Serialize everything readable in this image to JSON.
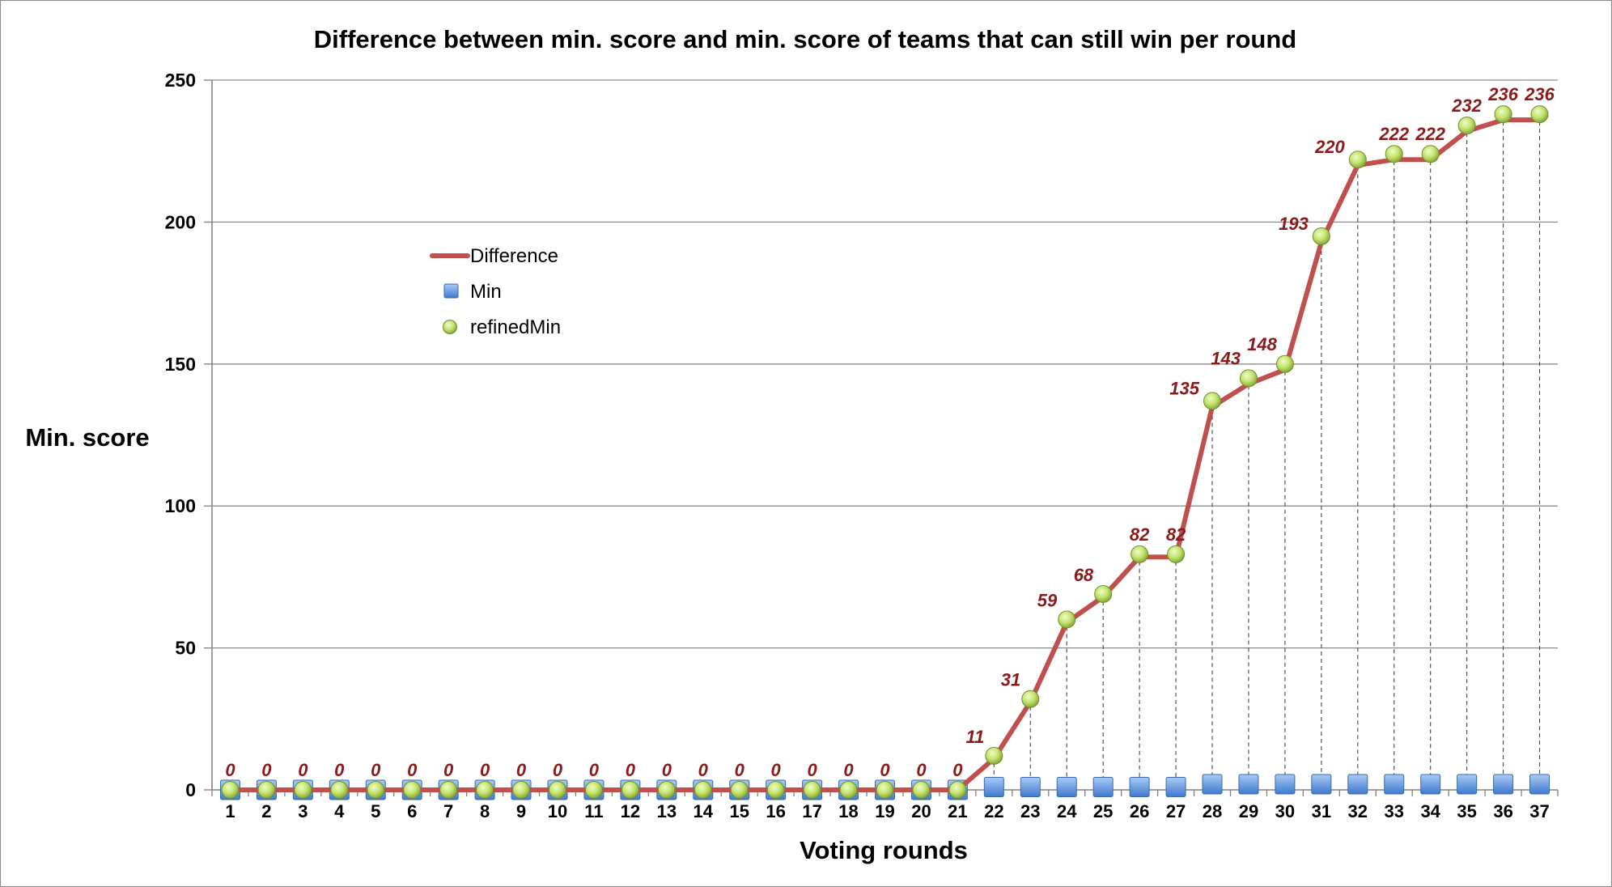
{
  "chart_data": {
    "type": "line",
    "title": "Difference between min. score and min. score of teams that can still win per round",
    "xlabel": "Voting rounds",
    "ylabel": "Min. score",
    "ylim": [
      0,
      250
    ],
    "yticks": [
      "0",
      "50",
      "100",
      "150",
      "200",
      "250"
    ],
    "categories": [
      "1",
      "2",
      "3",
      "4",
      "5",
      "6",
      "7",
      "8",
      "9",
      "10",
      "11",
      "12",
      "13",
      "14",
      "15",
      "16",
      "17",
      "18",
      "19",
      "20",
      "21",
      "22",
      "23",
      "24",
      "25",
      "26",
      "27",
      "28",
      "29",
      "30",
      "31",
      "32",
      "33",
      "34",
      "35",
      "36",
      "37"
    ],
    "legend_position": "upper-left",
    "series": [
      {
        "name": "Difference",
        "style": "line",
        "color": "#c0504d",
        "values": [
          0,
          0,
          0,
          0,
          0,
          0,
          0,
          0,
          0,
          0,
          0,
          0,
          0,
          0,
          0,
          0,
          0,
          0,
          0,
          0,
          0,
          11,
          31,
          59,
          68,
          82,
          82,
          135,
          143,
          148,
          193,
          220,
          222,
          222,
          232,
          236,
          236
        ],
        "labels": [
          "0",
          "0",
          "0",
          "0",
          "0",
          "0",
          "0",
          "0",
          "0",
          "0",
          "0",
          "0",
          "0",
          "0",
          "0",
          "0",
          "0",
          "0",
          "0",
          "0",
          "0",
          "11",
          "31",
          "59",
          "68",
          "82",
          "82",
          "135",
          "143",
          "148",
          "193",
          "220",
          "222",
          "222",
          "232",
          "236",
          "236"
        ]
      },
      {
        "name": "Min",
        "style": "square-marker",
        "color": "#4f81bd",
        "values": [
          0,
          0,
          0,
          0,
          0,
          0,
          0,
          0,
          0,
          0,
          0,
          0,
          0,
          0,
          0,
          0,
          0,
          0,
          0,
          0,
          0,
          1,
          1,
          1,
          1,
          1,
          1,
          2,
          2,
          2,
          2,
          2,
          2,
          2,
          2,
          2,
          2
        ]
      },
      {
        "name": "refinedMin",
        "style": "circle-marker",
        "color": "#9bbb59",
        "values": [
          0,
          0,
          0,
          0,
          0,
          0,
          0,
          0,
          0,
          0,
          0,
          0,
          0,
          0,
          0,
          0,
          0,
          0,
          0,
          0,
          0,
          12,
          32,
          60,
          69,
          83,
          83,
          137,
          145,
          150,
          195,
          222,
          224,
          224,
          234,
          238,
          238
        ]
      }
    ],
    "drop_lines": true,
    "grid": true
  }
}
